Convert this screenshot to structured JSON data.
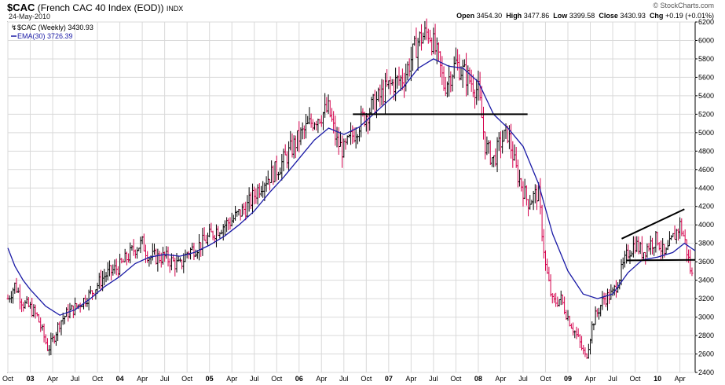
{
  "header": {
    "symbol": "$CAC",
    "name": "(French CAC 40 Index (EOD))",
    "exchange": "INDX",
    "date": "24-May-2010",
    "brand": "© StockCharts.com",
    "open_label": "Open",
    "open": "3454.30",
    "high_label": "High",
    "high": "3477.86",
    "low_label": "Low",
    "low": "3399.58",
    "close_label": "Close",
    "close": "3430.93",
    "chg_label": "Chg",
    "chg": "+0.19 (+0.01%)"
  },
  "legend": {
    "price": "$CAC (Weekly) 3430.93",
    "ema": "EMA(30) 3726.39"
  },
  "colors": {
    "up": "#000000",
    "down": "#d4004c",
    "ema": "#1a1aa6",
    "grid": "#d9d9d9",
    "trend": "#000000"
  },
  "chart_data": {
    "type": "line",
    "series_type": "weekly OHLC bars",
    "ylim": [
      2400,
      6200
    ],
    "yticks": [
      2400,
      2600,
      2800,
      3000,
      3200,
      3400,
      3600,
      3800,
      4000,
      4200,
      4400,
      4600,
      4800,
      5000,
      5200,
      5400,
      5600,
      5800,
      6000,
      6200
    ],
    "xlim": [
      2002.75,
      2010.42
    ],
    "xticks": [
      {
        "label": "Oct",
        "x": 2002.75
      },
      {
        "label": "03",
        "x": 2003.0,
        "year": true
      },
      {
        "label": "Apr",
        "x": 2003.25
      },
      {
        "label": "Jul",
        "x": 2003.5
      },
      {
        "label": "Oct",
        "x": 2003.75
      },
      {
        "label": "04",
        "x": 2004.0,
        "year": true
      },
      {
        "label": "Apr",
        "x": 2004.25
      },
      {
        "label": "Jul",
        "x": 2004.5
      },
      {
        "label": "Oct",
        "x": 2004.75
      },
      {
        "label": "05",
        "x": 2005.0,
        "year": true
      },
      {
        "label": "Apr",
        "x": 2005.25
      },
      {
        "label": "Jul",
        "x": 2005.5
      },
      {
        "label": "Oct",
        "x": 2005.75
      },
      {
        "label": "06",
        "x": 2006.0,
        "year": true
      },
      {
        "label": "Apr",
        "x": 2006.25
      },
      {
        "label": "Jul",
        "x": 2006.5
      },
      {
        "label": "Oct",
        "x": 2006.75
      },
      {
        "label": "07",
        "x": 2007.0,
        "year": true
      },
      {
        "label": "Apr",
        "x": 2007.25
      },
      {
        "label": "Jul",
        "x": 2007.5
      },
      {
        "label": "Oct",
        "x": 2007.75
      },
      {
        "label": "08",
        "x": 2008.0,
        "year": true
      },
      {
        "label": "Apr",
        "x": 2008.25
      },
      {
        "label": "Jul",
        "x": 2008.5
      },
      {
        "label": "Oct",
        "x": 2008.75
      },
      {
        "label": "09",
        "x": 2009.0,
        "year": true
      },
      {
        "label": "Apr",
        "x": 2009.25
      },
      {
        "label": "Jul",
        "x": 2009.5
      },
      {
        "label": "Oct",
        "x": 2009.75
      },
      {
        "label": "10",
        "x": 2010.0,
        "year": true
      },
      {
        "label": "Apr",
        "x": 2010.25
      }
    ],
    "price_keypoints": [
      [
        2002.75,
        3200
      ],
      [
        2002.83,
        3350
      ],
      [
        2002.92,
        3150
      ],
      [
        2003.0,
        3100
      ],
      [
        2003.08,
        3000
      ],
      [
        2003.2,
        2650
      ],
      [
        2003.25,
        2750
      ],
      [
        2003.33,
        2950
      ],
      [
        2003.42,
        3050
      ],
      [
        2003.5,
        3100
      ],
      [
        2003.67,
        3250
      ],
      [
        2003.83,
        3450
      ],
      [
        2004.0,
        3550
      ],
      [
        2004.17,
        3750
      ],
      [
        2004.25,
        3800
      ],
      [
        2004.33,
        3650
      ],
      [
        2004.5,
        3650
      ],
      [
        2004.67,
        3550
      ],
      [
        2004.75,
        3700
      ],
      [
        2004.92,
        3800
      ],
      [
        2005.08,
        3950
      ],
      [
        2005.25,
        4050
      ],
      [
        2005.42,
        4200
      ],
      [
        2005.58,
        4450
      ],
      [
        2005.75,
        4600
      ],
      [
        2005.83,
        4700
      ],
      [
        2006.0,
        4950
      ],
      [
        2006.17,
        5150
      ],
      [
        2006.33,
        5250
      ],
      [
        2006.42,
        4900
      ],
      [
        2006.5,
        4800
      ],
      [
        2006.67,
        5100
      ],
      [
        2006.83,
        5300
      ],
      [
        2007.0,
        5500
      ],
      [
        2007.17,
        5600
      ],
      [
        2007.33,
        6000
      ],
      [
        2007.45,
        6100
      ],
      [
        2007.55,
        5800
      ],
      [
        2007.62,
        5500
      ],
      [
        2007.75,
        5750
      ],
      [
        2007.88,
        5600
      ],
      [
        2008.0,
        5450
      ],
      [
        2008.08,
        4850
      ],
      [
        2008.17,
        4700
      ],
      [
        2008.25,
        4900
      ],
      [
        2008.33,
        5000
      ],
      [
        2008.42,
        4600
      ],
      [
        2008.55,
        4250
      ],
      [
        2008.67,
        4350
      ],
      [
        2008.75,
        3550
      ],
      [
        2008.83,
        3150
      ],
      [
        2008.92,
        3200
      ],
      [
        2009.0,
        3000
      ],
      [
        2009.12,
        2750
      ],
      [
        2009.2,
        2550
      ],
      [
        2009.28,
        2950
      ],
      [
        2009.4,
        3200
      ],
      [
        2009.5,
        3250
      ],
      [
        2009.58,
        3450
      ],
      [
        2009.67,
        3700
      ],
      [
        2009.75,
        3800
      ],
      [
        2009.83,
        3700
      ],
      [
        2009.92,
        3800
      ],
      [
        2010.0,
        3850
      ],
      [
        2010.08,
        3650
      ],
      [
        2010.17,
        3850
      ],
      [
        2010.25,
        4000
      ],
      [
        2010.3,
        3850
      ],
      [
        2010.35,
        3600
      ],
      [
        2010.38,
        3450
      ],
      [
        2010.4,
        3430
      ]
    ],
    "ema_points": [
      [
        2002.75,
        3750
      ],
      [
        2002.83,
        3550
      ],
      [
        2002.92,
        3400
      ],
      [
        2003.0,
        3300
      ],
      [
        2003.17,
        3120
      ],
      [
        2003.33,
        3020
      ],
      [
        2003.5,
        3080
      ],
      [
        2003.67,
        3200
      ],
      [
        2003.83,
        3330
      ],
      [
        2004.0,
        3440
      ],
      [
        2004.17,
        3580
      ],
      [
        2004.33,
        3650
      ],
      [
        2004.5,
        3680
      ],
      [
        2004.67,
        3660
      ],
      [
        2004.83,
        3700
      ],
      [
        2005.0,
        3780
      ],
      [
        2005.17,
        3880
      ],
      [
        2005.33,
        4000
      ],
      [
        2005.5,
        4150
      ],
      [
        2005.67,
        4350
      ],
      [
        2005.83,
        4520
      ],
      [
        2006.0,
        4720
      ],
      [
        2006.17,
        4920
      ],
      [
        2006.33,
        5050
      ],
      [
        2006.5,
        4980
      ],
      [
        2006.67,
        5060
      ],
      [
        2006.83,
        5200
      ],
      [
        2007.0,
        5350
      ],
      [
        2007.17,
        5500
      ],
      [
        2007.33,
        5700
      ],
      [
        2007.5,
        5800
      ],
      [
        2007.67,
        5720
      ],
      [
        2007.83,
        5700
      ],
      [
        2008.0,
        5550
      ],
      [
        2008.17,
        5200
      ],
      [
        2008.33,
        5050
      ],
      [
        2008.5,
        4850
      ],
      [
        2008.67,
        4450
      ],
      [
        2008.83,
        3900
      ],
      [
        2009.0,
        3500
      ],
      [
        2009.17,
        3250
      ],
      [
        2009.33,
        3200
      ],
      [
        2009.5,
        3250
      ],
      [
        2009.67,
        3480
      ],
      [
        2009.83,
        3620
      ],
      [
        2010.0,
        3650
      ],
      [
        2010.17,
        3700
      ],
      [
        2010.3,
        3800
      ],
      [
        2010.42,
        3720
      ]
    ],
    "trendlines": [
      {
        "x1": 2006.6,
        "y1": 5200,
        "x2": 2008.55,
        "y2": 5200
      },
      {
        "x1": 2009.6,
        "y1": 3850,
        "x2": 2010.3,
        "y2": 4170
      },
      {
        "x1": 2009.65,
        "y1": 3615,
        "x2": 2010.42,
        "y2": 3620
      }
    ],
    "grid": true,
    "legend_position": "top-left"
  }
}
